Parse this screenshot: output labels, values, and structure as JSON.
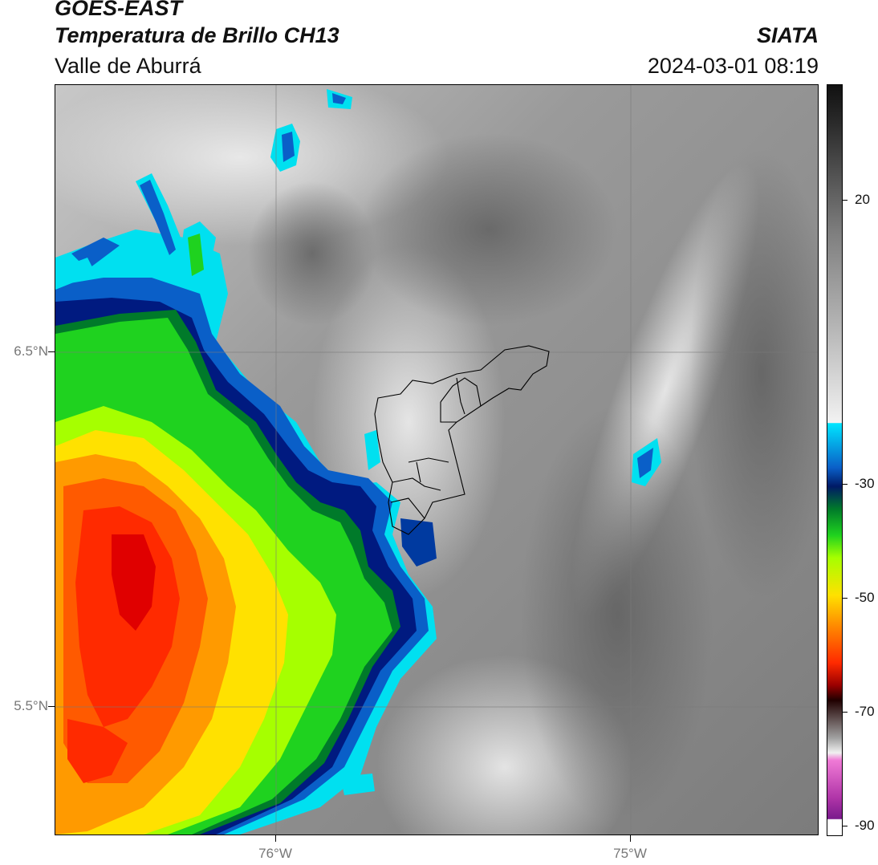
{
  "header": {
    "satellite": "GOES-EAST",
    "product": "Temperatura de Brillo CH13",
    "region": "Valle de Aburrá",
    "source": "SIATA",
    "datetime": "2024-03-01 08:19"
  },
  "axes": {
    "lat_labels": [
      "6.5°N",
      "5.5°N"
    ],
    "lon_labels": [
      "76°W",
      "75°W"
    ]
  },
  "colorbar": {
    "tick_labels": [
      "20",
      "-30",
      "-50",
      "-70",
      "-90"
    ],
    "colors": {
      "cyan": "#00e5ff",
      "blue": "#003a9e",
      "navy": "#001a66",
      "green": "#1fd21f",
      "lime": "#a6ff00",
      "yellow": "#ffe100",
      "orange": "#ff8c00",
      "red": "#ff2a00",
      "darkred": "#7a0000",
      "magenta": "#d23fb8",
      "purple": "#7a1a8c"
    }
  }
}
